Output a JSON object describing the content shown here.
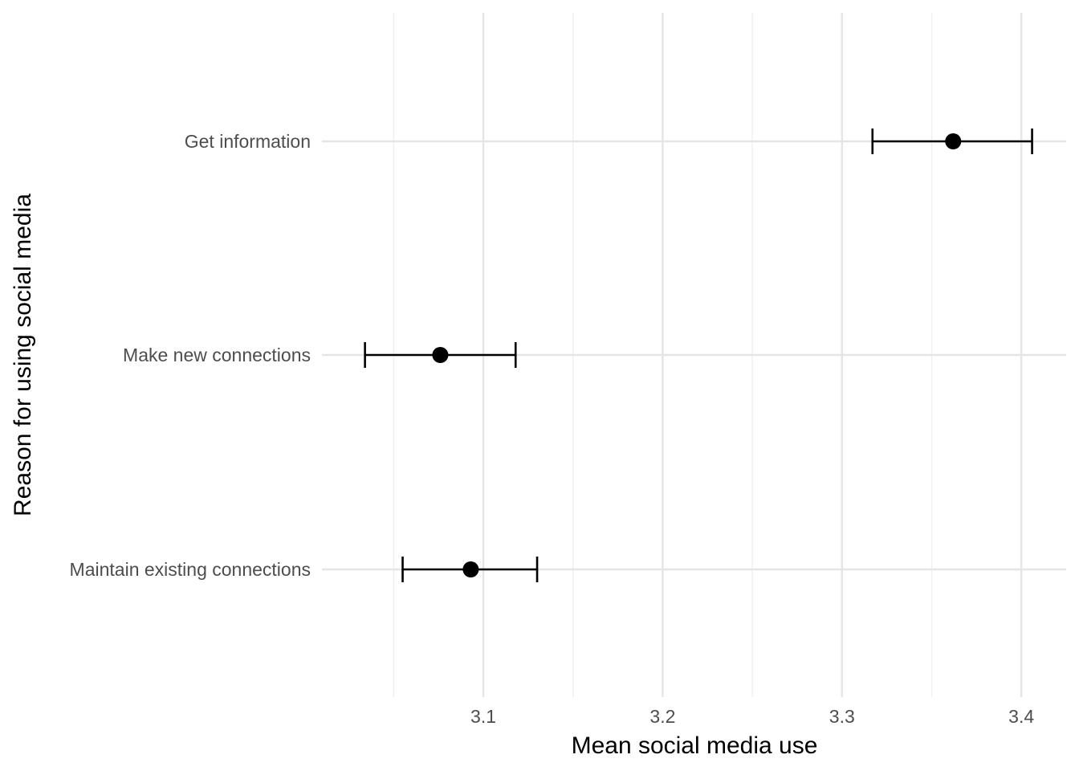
{
  "chart_data": {
    "type": "scatter",
    "subtype": "point-with-errorbars",
    "orientation": "horizontal",
    "title": "",
    "xlabel": "Mean social media use",
    "ylabel": "Reason for using social media",
    "xlim": [
      3.01,
      3.425
    ],
    "x_ticks": [
      3.1,
      3.2,
      3.3,
      3.4
    ],
    "x_tick_labels": [
      "3.1",
      "3.2",
      "3.3",
      "3.4"
    ],
    "x_minor_ticks": [
      3.05,
      3.15,
      3.25,
      3.35
    ],
    "categories": [
      "Get information",
      "Make new connections",
      "Maintain existing connections"
    ],
    "values": [
      3.362,
      3.076,
      3.093
    ],
    "lower": [
      3.317,
      3.034,
      3.055
    ],
    "upper": [
      3.406,
      3.118,
      3.13
    ],
    "grid": true,
    "legend": "none",
    "colors": {
      "point": "#000000",
      "grid": "#e5e5e5",
      "tick_text": "#4d4d4d",
      "title_text": "#000000"
    }
  }
}
